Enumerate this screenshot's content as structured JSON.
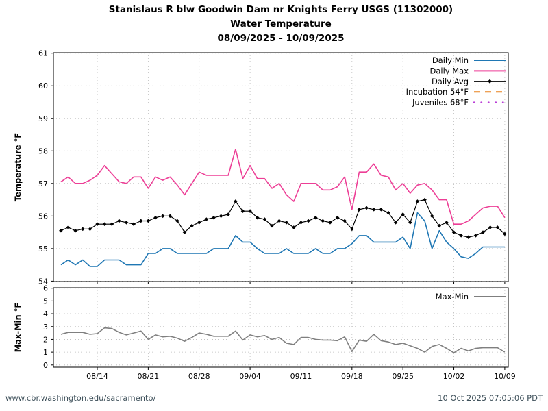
{
  "title": {
    "line1": "Stanislaus R blw Goodwin Dam nr Knights Ferry USGS (11302000)",
    "line2": "Water Temperature",
    "line3": "08/09/2025 - 10/09/2025"
  },
  "footer": {
    "url": "www.cbr.washington.edu/sacramento/",
    "timestamp": "10 Oct 2025 07:05:06 PDT"
  },
  "colors": {
    "daily_min": "#1f77b4",
    "daily_max": "#ed3e96",
    "daily_avg": "#000000",
    "incubation": "#e8821e",
    "juveniles": "#b93cd6",
    "maxmin": "#7f7f7f",
    "grid": "#bbbbbb",
    "axis": "#000000",
    "footer_text": "#3e505a"
  },
  "chart_data": [
    {
      "type": "line",
      "panel": "temperature",
      "ylabel": "Temperature °F",
      "ylim": [
        54,
        61
      ],
      "yticks": [
        54,
        55,
        56,
        57,
        58,
        59,
        60,
        61
      ],
      "grid": true,
      "legend_position": "upper right",
      "xtick_labels": [
        "08/14",
        "08/21",
        "08/28",
        "09/04",
        "09/11",
        "09/18",
        "09/25",
        "10/02",
        "10/09"
      ],
      "xtick_indices": [
        5,
        12,
        19,
        26,
        33,
        40,
        47,
        54,
        61
      ],
      "x": [
        "08/09",
        "08/10",
        "08/11",
        "08/12",
        "08/13",
        "08/14",
        "08/15",
        "08/16",
        "08/17",
        "08/18",
        "08/19",
        "08/20",
        "08/21",
        "08/22",
        "08/23",
        "08/24",
        "08/25",
        "08/26",
        "08/27",
        "08/28",
        "08/29",
        "08/30",
        "08/31",
        "09/01",
        "09/02",
        "09/03",
        "09/04",
        "09/05",
        "09/06",
        "09/07",
        "09/08",
        "09/09",
        "09/10",
        "09/11",
        "09/12",
        "09/13",
        "09/14",
        "09/15",
        "09/16",
        "09/17",
        "09/18",
        "09/19",
        "09/20",
        "09/21",
        "09/22",
        "09/23",
        "09/24",
        "09/25",
        "09/26",
        "09/27",
        "09/28",
        "09/29",
        "09/30",
        "10/01",
        "10/02",
        "10/03",
        "10/04",
        "10/05",
        "10/06",
        "10/07",
        "10/08",
        "10/09"
      ],
      "series": [
        {
          "name": "Daily Min",
          "color_key": "daily_min",
          "style": "solid",
          "width": 1.6,
          "values": [
            54.5,
            54.65,
            54.5,
            54.65,
            54.45,
            54.45,
            54.65,
            54.65,
            54.65,
            54.5,
            54.5,
            54.5,
            54.85,
            54.85,
            55,
            55,
            54.85,
            54.85,
            54.85,
            54.85,
            54.85,
            55,
            55,
            55,
            55.4,
            55.2,
            55.2,
            55,
            54.85,
            54.85,
            54.85,
            55,
            54.85,
            54.85,
            54.85,
            55,
            54.85,
            54.85,
            55,
            55,
            55.15,
            55.4,
            55.4,
            55.2,
            55.2,
            55.2,
            55.2,
            55.35,
            55,
            56.1,
            55.85,
            55,
            55.55,
            55.2,
            55,
            54.75,
            54.7,
            54.85,
            55.05,
            55.05,
            55.05,
            55.05
          ]
        },
        {
          "name": "Daily Max",
          "color_key": "daily_max",
          "style": "solid",
          "width": 1.6,
          "values": [
            57.05,
            57.2,
            57,
            57,
            57.1,
            57.25,
            57.55,
            57.3,
            57.05,
            57,
            57.2,
            57.2,
            56.85,
            57.2,
            57.1,
            57.2,
            56.95,
            56.65,
            57,
            57.35,
            57.25,
            57.25,
            57.25,
            57.25,
            58.05,
            57.15,
            57.55,
            57.15,
            57.15,
            56.85,
            57,
            56.65,
            56.45,
            57,
            57,
            57,
            56.8,
            56.8,
            56.9,
            57.2,
            56.2,
            57.35,
            57.35,
            57.6,
            57.25,
            57.2,
            56.8,
            57,
            56.7,
            56.95,
            57,
            56.8,
            56.5,
            56.5,
            55.75,
            55.75,
            55.85,
            56.05,
            56.25,
            56.3,
            56.3,
            55.95
          ]
        },
        {
          "name": "Daily Avg",
          "color_key": "daily_avg",
          "style": "solid",
          "width": 1.2,
          "marker": "diamond",
          "values": [
            55.55,
            55.65,
            55.55,
            55.6,
            55.6,
            55.75,
            55.75,
            55.75,
            55.85,
            55.8,
            55.75,
            55.85,
            55.85,
            55.95,
            56,
            56,
            55.85,
            55.5,
            55.7,
            55.8,
            55.9,
            55.95,
            56,
            56.05,
            56.45,
            56.15,
            56.15,
            55.95,
            55.9,
            55.7,
            55.85,
            55.8,
            55.65,
            55.8,
            55.85,
            55.95,
            55.85,
            55.8,
            55.95,
            55.85,
            55.6,
            56.2,
            56.25,
            56.2,
            56.2,
            56.1,
            55.8,
            56.05,
            55.8,
            56.45,
            56.5,
            56,
            55.7,
            55.8,
            55.5,
            55.4,
            55.35,
            55.4,
            55.5,
            55.65,
            55.65,
            55.45
          ]
        },
        {
          "name": "Incubation 54°F",
          "color_key": "incubation",
          "style": "dashed",
          "width": 2,
          "threshold": 54,
          "values": null
        },
        {
          "name": "Juveniles 68°F",
          "color_key": "juveniles",
          "style": "dotted",
          "width": 2.4,
          "threshold": 68,
          "values": null
        }
      ]
    },
    {
      "type": "line",
      "panel": "range",
      "ylabel": "Max-Min °F",
      "ylim": [
        0,
        6
      ],
      "yticks": [
        0,
        1,
        2,
        3,
        4,
        5,
        6
      ],
      "grid": true,
      "legend_position": "upper right",
      "xtick_labels": [
        "08/14",
        "08/21",
        "08/28",
        "09/04",
        "09/11",
        "09/18",
        "09/25",
        "10/02",
        "10/09"
      ],
      "xtick_indices": [
        5,
        12,
        19,
        26,
        33,
        40,
        47,
        54,
        61
      ],
      "series": [
        {
          "name": "Max-Min",
          "color_key": "maxmin",
          "style": "solid",
          "width": 1.6,
          "values": [
            2.4,
            2.55,
            2.55,
            2.55,
            2.4,
            2.45,
            2.9,
            2.85,
            2.55,
            2.35,
            2.5,
            2.65,
            2,
            2.35,
            2.2,
            2.25,
            2.1,
            1.85,
            2.15,
            2.5,
            2.4,
            2.25,
            2.25,
            2.25,
            2.65,
            1.95,
            2.35,
            2.2,
            2.3,
            2,
            2.15,
            1.7,
            1.6,
            2.15,
            2.15,
            2,
            1.95,
            1.95,
            1.9,
            2.2,
            1.05,
            1.95,
            1.85,
            2.4,
            1.9,
            1.8,
            1.6,
            1.7,
            1.5,
            1.3,
            1,
            1.45,
            1.6,
            1.3,
            0.95,
            1.3,
            1.1,
            1.3,
            1.35,
            1.35,
            1.35,
            1
          ]
        }
      ]
    }
  ]
}
